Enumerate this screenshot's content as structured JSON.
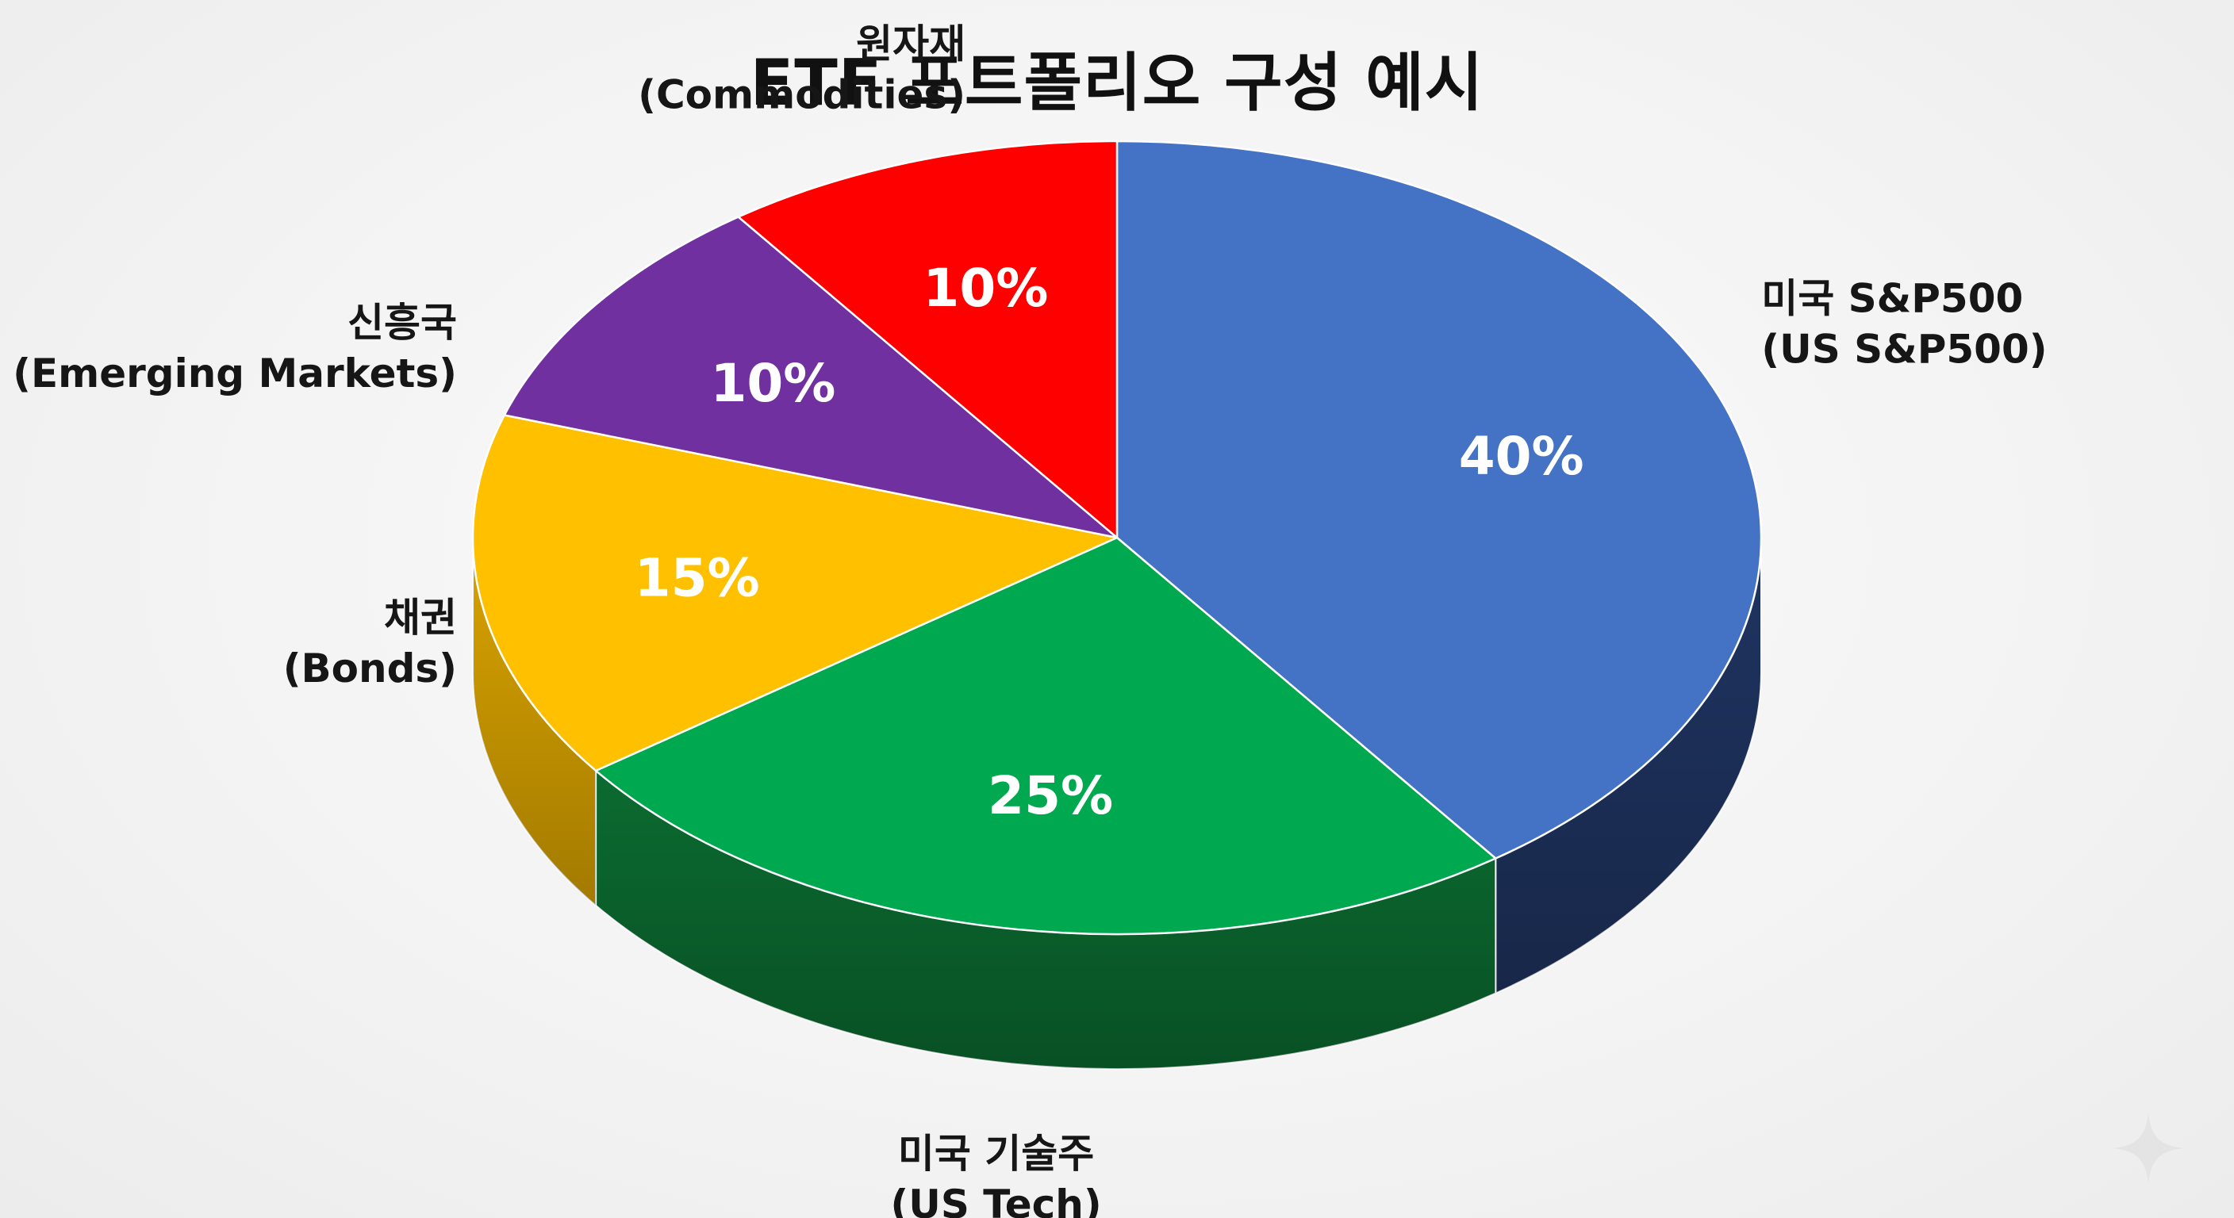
{
  "chart_data": {
    "type": "pie",
    "title": "ETF 포트폴리오 구성 예시",
    "slices": [
      {
        "label_ko": "미국 S&P500",
        "label_en": "(US S&P500)",
        "value": 40,
        "value_label": "40%",
        "color": "#4472C4",
        "side_color": "#1F3461"
      },
      {
        "label_ko": "미국 기술주",
        "label_en": "(US Tech)",
        "value": 25,
        "value_label": "25%",
        "color": "#00A84F",
        "side_color": "#0B6B30"
      },
      {
        "label_ko": "채권",
        "label_en": "(Bonds)",
        "value": 15,
        "value_label": "15%",
        "color": "#FFC000",
        "side_color": "#D9A300"
      },
      {
        "label_ko": "신흥국",
        "label_en": "(Emerging Markets)",
        "value": 10,
        "value_label": "10%",
        "color": "#7030A0",
        "side_color": "#4A1F6B"
      },
      {
        "label_ko": "원자재",
        "label_en": "(Commodities)",
        "value": 10,
        "value_label": "10%",
        "color": "#FF0000",
        "side_color": "#A00000"
      }
    ],
    "style": "3d-pie"
  }
}
